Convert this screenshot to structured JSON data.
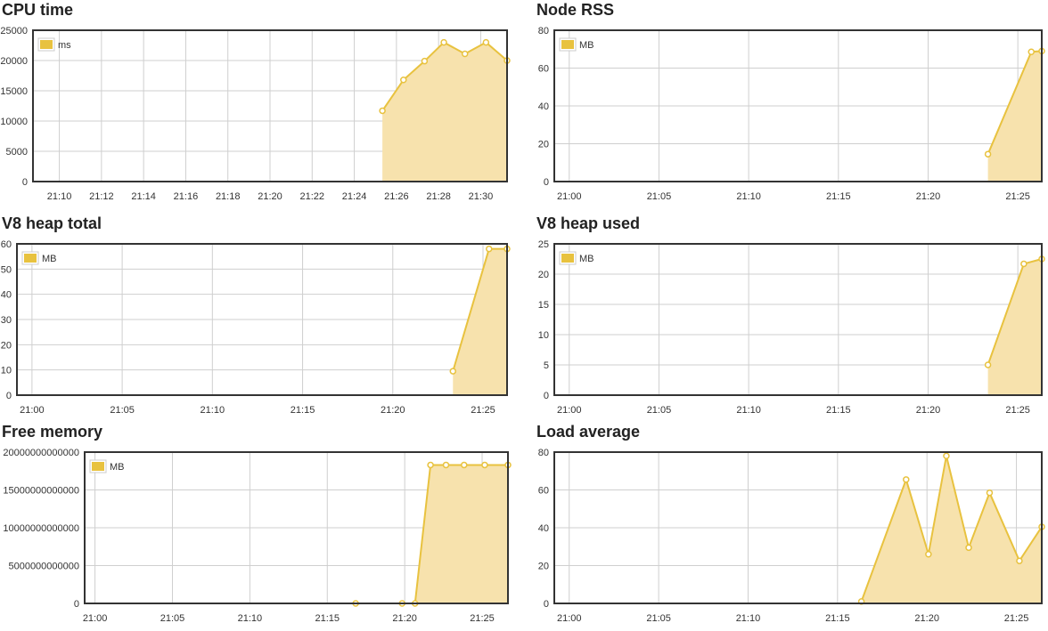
{
  "colors": {
    "line": "#e8c23f",
    "fill": "#f7e2ad",
    "grid": "#cfcfcf",
    "frame": "#333333",
    "point_fill": "#ffffff"
  },
  "chart_data": [
    {
      "type": "area",
      "title": "CPU time",
      "legend": "ms",
      "legend_position": "top-left",
      "grid": true,
      "ylim": [
        0,
        25000
      ],
      "yticks": [
        "0",
        "5000",
        "10000",
        "15000",
        "20000",
        "25000"
      ],
      "xlim": [
        "21:08:45",
        "21:31:15"
      ],
      "xticks": [
        "21:10",
        "21:12",
        "21:14",
        "21:16",
        "21:18",
        "21:20",
        "21:22",
        "21:24",
        "21:26",
        "21:28",
        "21:30"
      ],
      "points": [
        {
          "x": "21:25:20",
          "y": 11700
        },
        {
          "x": "21:26:20",
          "y": 16800
        },
        {
          "x": "21:27:20",
          "y": 19900
        },
        {
          "x": "21:28:15",
          "y": 23000
        },
        {
          "x": "21:29:15",
          "y": 21100
        },
        {
          "x": "21:30:15",
          "y": 23000
        },
        {
          "x": "21:31:15",
          "y": 20000
        }
      ]
    },
    {
      "type": "area",
      "title": "Node RSS",
      "legend": "MB",
      "legend_position": "top-left",
      "grid": true,
      "ylim": [
        0,
        80
      ],
      "yticks": [
        "0",
        "20",
        "40",
        "60",
        "80"
      ],
      "xlim": [
        "20:59:10",
        "21:26:20"
      ],
      "xticks": [
        "21:00",
        "21:05",
        "21:10",
        "21:15",
        "21:20",
        "21:25"
      ],
      "points": [
        {
          "x": "21:23:20",
          "y": 14.5
        },
        {
          "x": "21:25:45",
          "y": 68.6
        },
        {
          "x": "21:26:20",
          "y": 69
        }
      ]
    },
    {
      "type": "area",
      "title": "V8 heap total",
      "legend": "MB",
      "legend_position": "top-left",
      "grid": true,
      "ylim": [
        0,
        60
      ],
      "yticks": [
        "0",
        "10",
        "20",
        "30",
        "40",
        "50",
        "60"
      ],
      "xlim": [
        "20:59:10",
        "21:26:20"
      ],
      "xticks": [
        "21:00",
        "21:05",
        "21:10",
        "21:15",
        "21:20",
        "21:25"
      ],
      "points": [
        {
          "x": "21:23:20",
          "y": 9.5
        },
        {
          "x": "21:25:20",
          "y": 58
        },
        {
          "x": "21:26:20",
          "y": 58
        }
      ]
    },
    {
      "type": "area",
      "title": "V8 heap used",
      "legend": "MB",
      "legend_position": "top-left",
      "grid": true,
      "ylim": [
        0,
        25
      ],
      "yticks": [
        "0",
        "5",
        "10",
        "15",
        "20",
        "25"
      ],
      "xlim": [
        "20:59:10",
        "21:26:20"
      ],
      "xticks": [
        "21:00",
        "21:05",
        "21:10",
        "21:15",
        "21:20",
        "21:25"
      ],
      "points": [
        {
          "x": "21:23:20",
          "y": 5
        },
        {
          "x": "21:25:20",
          "y": 21.7
        },
        {
          "x": "21:26:20",
          "y": 22.5
        }
      ]
    },
    {
      "type": "area",
      "title": "Free memory",
      "legend": "MB",
      "legend_position": "top-left",
      "grid": true,
      "ylim": [
        0,
        20000000000000
      ],
      "yticks": [
        "0",
        "5000000000000",
        "10000000000000",
        "15000000000000",
        "20000000000000"
      ],
      "xlim": [
        "20:59:20",
        "21:26:40"
      ],
      "xticks": [
        "21:00",
        "21:05",
        "21:10",
        "21:15",
        "21:20",
        "21:25"
      ],
      "points": [
        {
          "x": "21:16:50",
          "y": 0
        },
        {
          "x": "21:19:50",
          "y": 0
        },
        {
          "x": "21:20:40",
          "y": 0
        },
        {
          "x": "21:21:40",
          "y": 18300000000000
        },
        {
          "x": "21:22:40",
          "y": 18300000000000
        },
        {
          "x": "21:23:50",
          "y": 18300000000000
        },
        {
          "x": "21:25:10",
          "y": 18300000000000
        },
        {
          "x": "21:26:40",
          "y": 18300000000000
        }
      ]
    },
    {
      "type": "area",
      "title": "Load average",
      "legend": "",
      "legend_position": "none",
      "grid": true,
      "ylim": [
        0,
        80
      ],
      "yticks": [
        "0",
        "20",
        "40",
        "60",
        "80"
      ],
      "xlim": [
        "20:59:10",
        "21:26:25"
      ],
      "xticks": [
        "21:00",
        "21:05",
        "21:10",
        "21:15",
        "21:20",
        "21:25"
      ],
      "points": [
        {
          "x": "21:16:20",
          "y": 1
        },
        {
          "x": "21:18:50",
          "y": 65.5
        },
        {
          "x": "21:20:05",
          "y": 26
        },
        {
          "x": "21:21:05",
          "y": 78
        },
        {
          "x": "21:22:20",
          "y": 29.5
        },
        {
          "x": "21:23:30",
          "y": 58.5
        },
        {
          "x": "21:25:10",
          "y": 22.5
        },
        {
          "x": "21:26:25",
          "y": 40.5
        }
      ]
    }
  ]
}
